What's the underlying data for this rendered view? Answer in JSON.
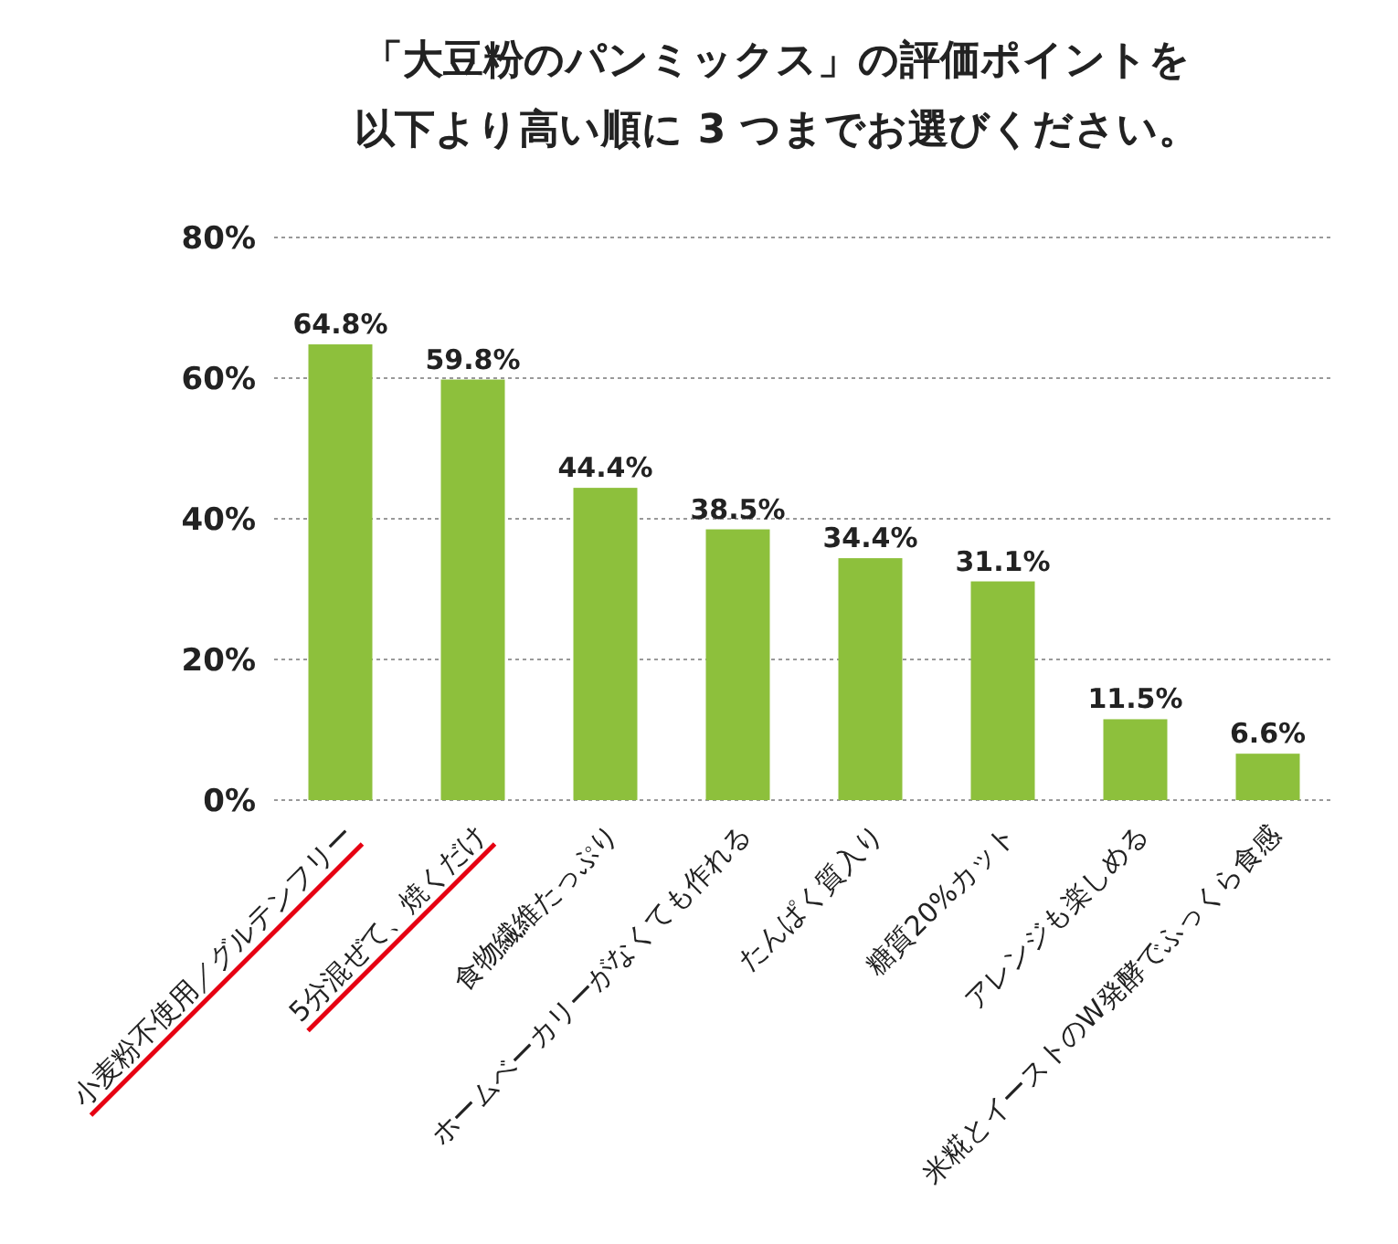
{
  "chart_data": {
    "type": "bar",
    "title": "「大豆粉のパンミックス」の評価ポイントを",
    "subtitle": "以下より高い順に 3 つまでお選びください。",
    "categories": [
      "小麦粉不使用／グルテンフリー",
      "5分混ぜて、焼くだけ",
      "食物繊維たっぷり",
      "ホームベーカリーがなくても作れる",
      "たんぱく質入り",
      "糖質20%カット",
      "アレンジも楽しめる",
      "米糀とイーストのW発酵でふっくら食感"
    ],
    "values": [
      64.8,
      59.8,
      44.4,
      38.5,
      34.4,
      31.1,
      11.5,
      6.6
    ],
    "value_labels": [
      "64.8%",
      "59.8%",
      "44.4%",
      "38.5%",
      "34.4%",
      "31.1%",
      "11.5%",
      "6.6%"
    ],
    "color": "#8dc03c",
    "ylim": [
      0,
      80
    ],
    "yticks": [
      {
        "value": 0,
        "label": "0%"
      },
      {
        "value": 20,
        "label": "20%"
      },
      {
        "value": 40,
        "label": "40%"
      },
      {
        "value": 60,
        "label": "60%"
      },
      {
        "value": 80,
        "label": "80%"
      }
    ],
    "grid": "y"
  }
}
